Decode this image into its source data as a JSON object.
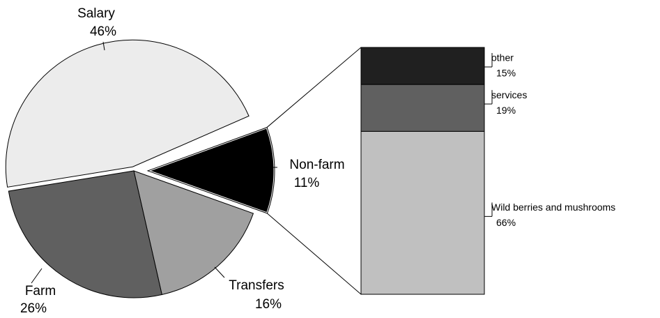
{
  "chart_data": [
    {
      "type": "pie",
      "categories": [
        "Non-farm",
        "Transfers",
        "Farm",
        "Salary"
      ],
      "values": [
        11,
        16,
        26,
        46
      ],
      "value_labels": [
        "11%",
        "16%",
        "26%",
        "46%"
      ],
      "colors": [
        "#000000",
        "#a0a0a0",
        "#606060",
        "#ececec"
      ]
    },
    {
      "type": "bar",
      "series": [
        {
          "name": "Wild berries and mushrooms",
          "color": "#c0c0c0",
          "values": [
            66
          ],
          "value_labels": [
            "66%"
          ]
        },
        {
          "name": "services",
          "color": "#606060",
          "values": [
            19
          ],
          "value_labels": [
            "19%"
          ]
        },
        {
          "name": "other",
          "color": "#202020",
          "values": [
            15
          ],
          "value_labels": [
            "15%"
          ]
        }
      ]
    }
  ]
}
